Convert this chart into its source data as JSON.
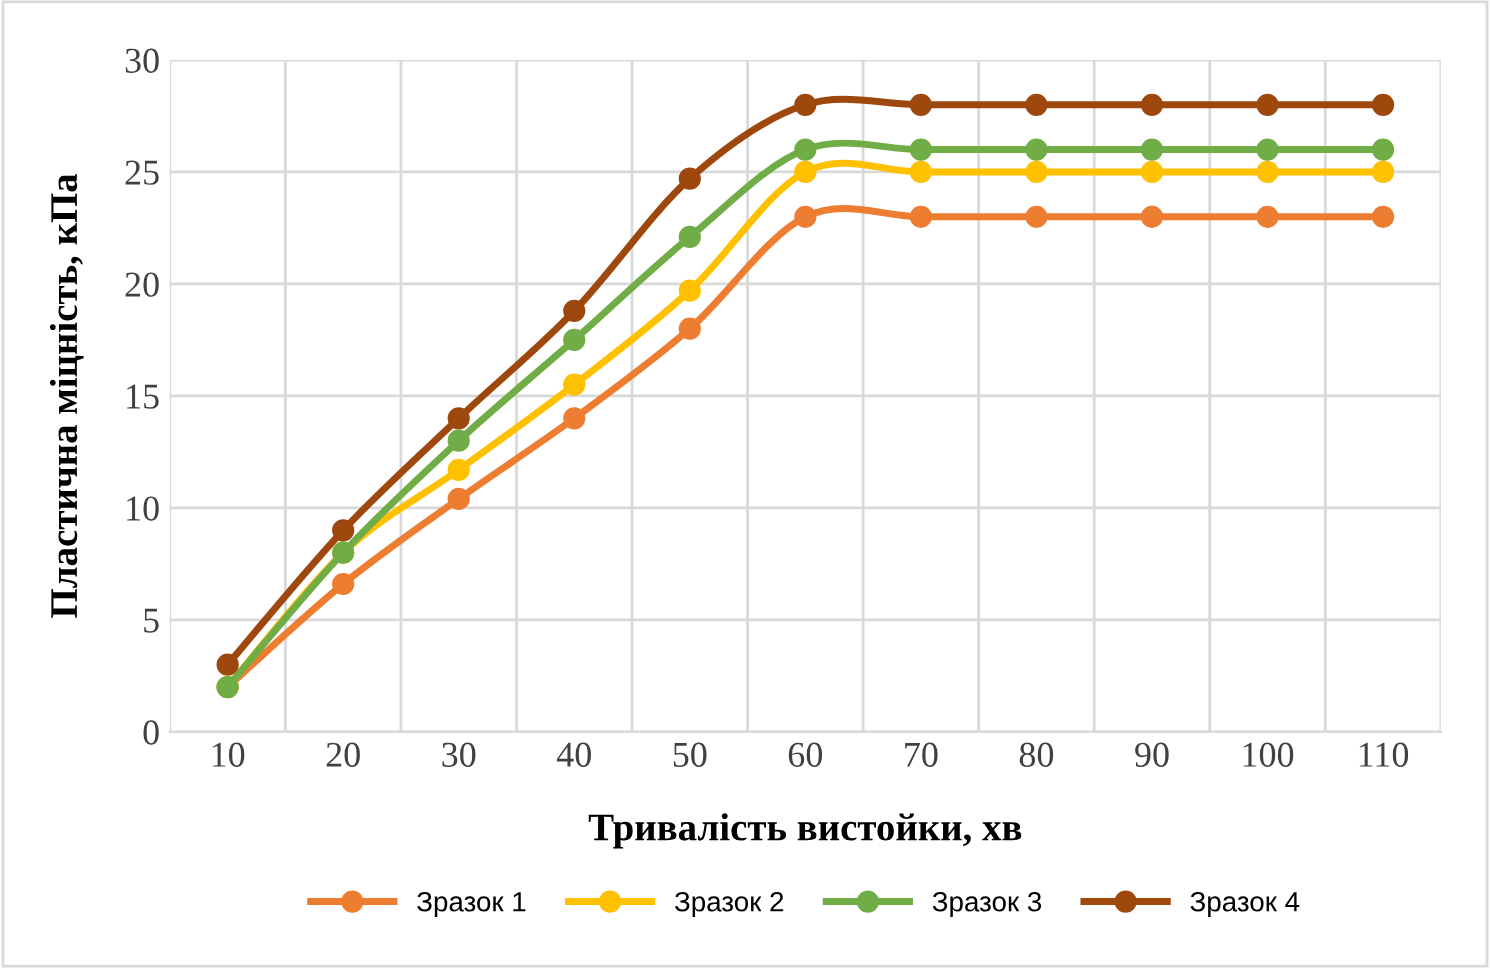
{
  "chart_data": {
    "type": "line",
    "xlabel": "Тривалість вистойки, хв",
    "ylabel": "Пластична міцність, кПа",
    "categories": [
      "10",
      "20",
      "30",
      "40",
      "50",
      "60",
      "70",
      "80",
      "90",
      "100",
      "110"
    ],
    "series": [
      {
        "name": "Зразок 1",
        "color": "#ed7d31",
        "values": [
          2,
          6.6,
          10.4,
          14.0,
          18.0,
          23,
          23,
          23,
          23,
          23,
          23
        ]
      },
      {
        "name": "Зразок 2",
        "color": "#ffc000",
        "values": [
          2,
          8,
          11.7,
          15.5,
          19.7,
          25,
          25,
          25,
          25,
          25,
          25
        ]
      },
      {
        "name": "Зразок 3",
        "color": "#70ad47",
        "values": [
          2,
          8,
          13.0,
          17.5,
          22.1,
          26,
          26,
          26,
          26,
          26,
          26
        ]
      },
      {
        "name": "Зразок 4",
        "color": "#9e480e",
        "values": [
          3,
          9,
          14,
          18.8,
          24.7,
          28,
          28,
          28,
          28,
          28,
          28
        ]
      }
    ],
    "ylim": [
      0,
      30
    ],
    "yticks": [
      0,
      5,
      10,
      15,
      20,
      25,
      30
    ],
    "grid": true,
    "legend": "bottom",
    "marker": "circle",
    "line_style": "solid"
  }
}
